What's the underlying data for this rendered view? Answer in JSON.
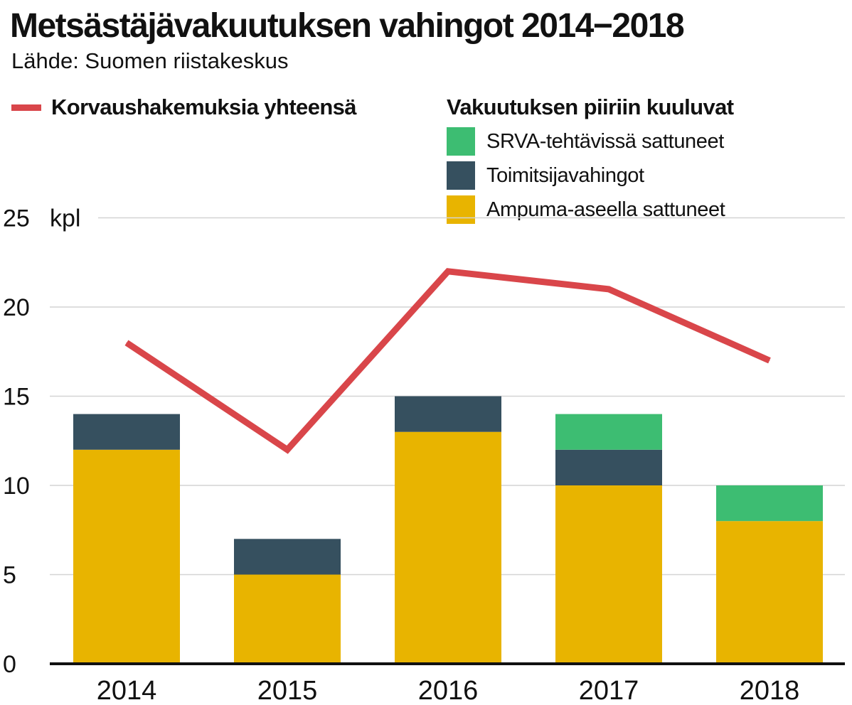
{
  "chart_data": {
    "type": "bar",
    "title": "Metsästäjävakuutuksen vahingot 2014−2018",
    "subtitle": "Lähde: Suomen riistakeskus",
    "unit_label": "kpl",
    "categories": [
      "2014",
      "2015",
      "2016",
      "2017",
      "2018"
    ],
    "stacked": true,
    "legend_title": "Vakuutuksen piiriin kuuluvat",
    "series": [
      {
        "name": "Ampuma-aseella sattuneet",
        "values": [
          12,
          5,
          13,
          10,
          8
        ],
        "color": "#e8b400"
      },
      {
        "name": "Toimitsijavahingot",
        "values": [
          2,
          2,
          2,
          2,
          0
        ],
        "color": "#36505f"
      },
      {
        "name": "SRVA-tehtävissä sattuneet",
        "values": [
          0,
          0,
          0,
          2,
          2
        ],
        "color": "#3dbd72"
      }
    ],
    "line_series": {
      "name": "Korvaushakemuksia yhteensä",
      "values": [
        18,
        12,
        22,
        21,
        17
      ],
      "color": "#d9464a"
    },
    "ylim": [
      0,
      25
    ],
    "yticks": [
      "0",
      "5",
      "10",
      "15",
      "20",
      "25"
    ],
    "grid": true,
    "legend_position": "top-right"
  }
}
